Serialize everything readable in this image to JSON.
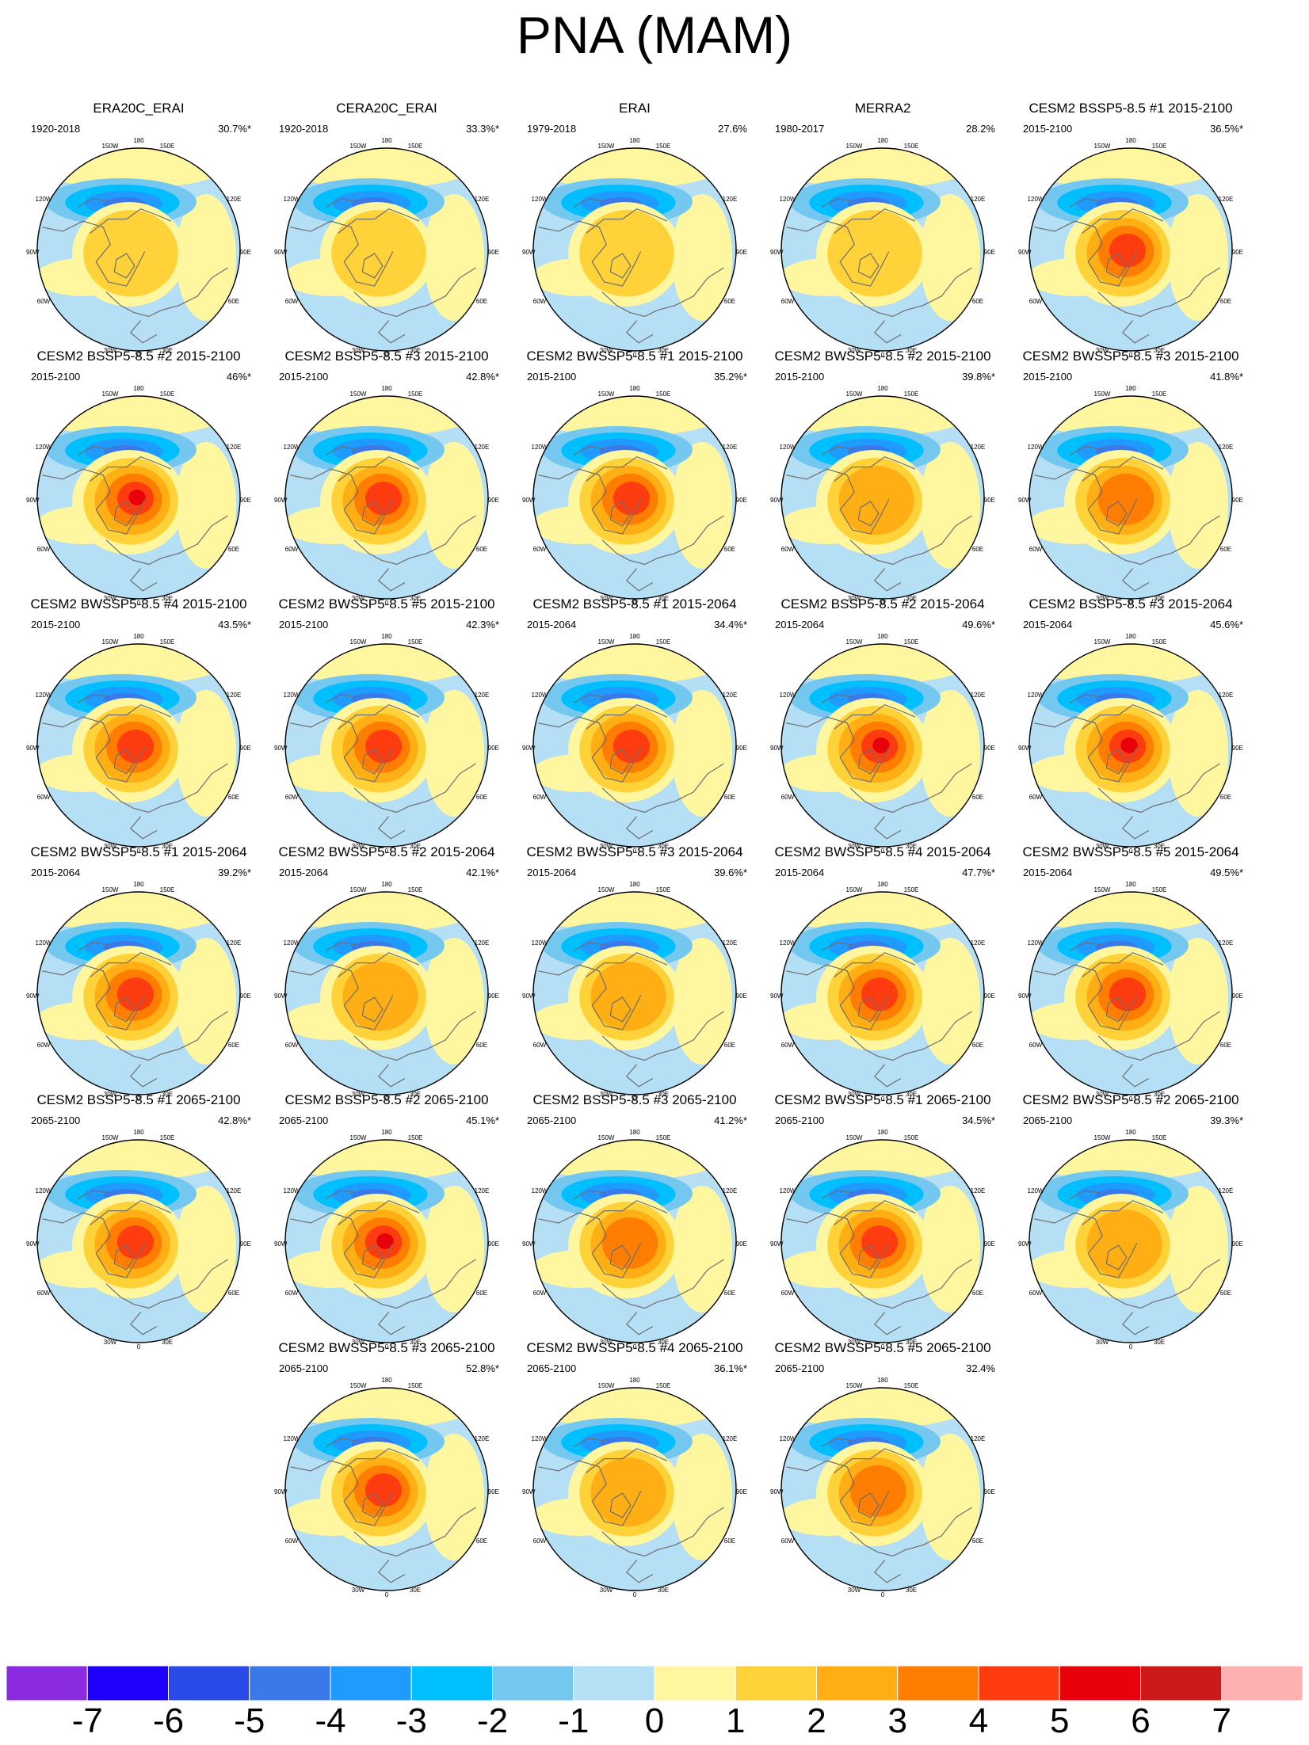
{
  "title": "PNA (MAM)",
  "chart_data": {
    "type": "heatmap",
    "projection": "north-polar-stereographic",
    "title": "PNA (MAM)",
    "longitude_labels": [
      "180",
      "150W",
      "150E",
      "120W",
      "120E",
      "90W",
      "90E",
      "60W",
      "60E",
      "30W",
      "30E",
      "0"
    ],
    "colorbar": {
      "levels": [
        "-7",
        "-6",
        "-5",
        "-4",
        "-3",
        "-2",
        "-1",
        "0",
        "1",
        "2",
        "3",
        "4",
        "5",
        "6",
        "7"
      ],
      "colors": [
        "#8a2be2",
        "#1f00ff",
        "#2a4ae8",
        "#3a7ae8",
        "#1f9bff",
        "#00bfff",
        "#74c8f0",
        "#b5dff4",
        "#fff7a0",
        "#ffd23a",
        "#ffae14",
        "#ff7d00",
        "#ff3c0f",
        "#e8000b",
        "#cc1a1a",
        "#ffb0b0"
      ]
    },
    "panels": [
      {
        "title": "ERA20C_ERAI",
        "period": "1920-2018",
        "explained_variance": "30.7%*",
        "pos_peak": 2.0,
        "neg_peak": -3.1
      },
      {
        "title": "CERA20C_ERAI",
        "period": "1920-2018",
        "explained_variance": "33.3%*",
        "pos_peak": 1.9,
        "neg_peak": -3.2
      },
      {
        "title": "ERAI",
        "period": "1979-2018",
        "explained_variance": "27.6%",
        "pos_peak": 1.9,
        "neg_peak": -3.1
      },
      {
        "title": "MERRA2",
        "period": "1980-2017",
        "explained_variance": "28.2%",
        "pos_peak": 1.9,
        "neg_peak": -3.2
      },
      {
        "title": "CESM2 BSSP5-8.5 #1 2015-2100",
        "period": "2015-2100",
        "explained_variance": "36.5%*",
        "pos_peak": 4.6,
        "neg_peak": -3.4
      },
      {
        "title": "CESM2 BSSP5-8.5 #2 2015-2100",
        "period": "2015-2100",
        "explained_variance": "46%*",
        "pos_peak": 5.8,
        "neg_peak": -4.0
      },
      {
        "title": "CESM2 BSSP5-8.5 #3 2015-2100",
        "period": "2015-2100",
        "explained_variance": "42.8%*",
        "pos_peak": 4.7,
        "neg_peak": -4.1
      },
      {
        "title": "CESM2 BWSSP5-8.5 #1 2015-2100",
        "period": "2015-2100",
        "explained_variance": "35.2%*",
        "pos_peak": 4.4,
        "neg_peak": -3.6
      },
      {
        "title": "CESM2 BWSSP5-8.5 #2 2015-2100",
        "period": "2015-2100",
        "explained_variance": "39.8%*",
        "pos_peak": 2.9,
        "neg_peak": -4.1
      },
      {
        "title": "CESM2 BWSSP5-8.5 #3 2015-2100",
        "period": "2015-2100",
        "explained_variance": "41.8%*",
        "pos_peak": 3.4,
        "neg_peak": -4.1
      },
      {
        "title": "CESM2 BWSSP5-8.5 #4 2015-2100",
        "period": "2015-2100",
        "explained_variance": "43.5%*",
        "pos_peak": 4.2,
        "neg_peak": -4.4
      },
      {
        "title": "CESM2 BWSSP5-8.5 #5 2015-2100",
        "period": "2015-2100",
        "explained_variance": "42.3%*",
        "pos_peak": 4.2,
        "neg_peak": -4.3
      },
      {
        "title": "CESM2 BSSP5-8.5 #1 2015-2064",
        "period": "2015-2064",
        "explained_variance": "34.4%*",
        "pos_peak": 4.7,
        "neg_peak": -3.5
      },
      {
        "title": "CESM2 BSSP5-8.5 #2 2015-2064",
        "period": "2015-2064",
        "explained_variance": "49.6%*",
        "pos_peak": 5.6,
        "neg_peak": -5.6
      },
      {
        "title": "CESM2 BSSP5-8.5 #3 2015-2064",
        "period": "2015-2064",
        "explained_variance": "45.6%*",
        "pos_peak": 5.4,
        "neg_peak": -3.9
      },
      {
        "title": "CESM2 BWSSP5-8.5 #1 2015-2064",
        "period": "2015-2064",
        "explained_variance": "39.2%*",
        "pos_peak": 4.6,
        "neg_peak": -4.1
      },
      {
        "title": "CESM2 BWSSP5-8.5 #2 2015-2064",
        "period": "2015-2064",
        "explained_variance": "42.1%*",
        "pos_peak": 2.9,
        "neg_peak": -4.3
      },
      {
        "title": "CESM2 BWSSP5-8.5 #3 2015-2064",
        "period": "2015-2064",
        "explained_variance": "39.6%*",
        "pos_peak": 2.9,
        "neg_peak": -4.0
      },
      {
        "title": "CESM2 BWSSP5-8.5 #4 2015-2064",
        "period": "2015-2064",
        "explained_variance": "47.7%*",
        "pos_peak": 4.4,
        "neg_peak": -4.6
      },
      {
        "title": "CESM2 BWSSP5-8.5 #5 2015-2064",
        "period": "2015-2064",
        "explained_variance": "49.5%*",
        "pos_peak": 4.4,
        "neg_peak": -4.2
      },
      {
        "title": "CESM2 BSSP5-8.5 #1 2065-2100",
        "period": "2065-2100",
        "explained_variance": "42.8%*",
        "pos_peak": 4.4,
        "neg_peak": -3.9
      },
      {
        "title": "CESM2 BSSP5-8.5 #2 2065-2100",
        "period": "2065-2100",
        "explained_variance": "45.1%*",
        "pos_peak": 6.6,
        "neg_peak": -3.9
      },
      {
        "title": "CESM2 BSSP5-8.5 #3 2065-2100",
        "period": "2065-2100",
        "explained_variance": "41.2%*",
        "pos_peak": 3.4,
        "neg_peak": -4.6
      },
      {
        "title": "CESM2 BWSSP5-8.5 #1 2065-2100",
        "period": "2065-2100",
        "explained_variance": "34.5%*",
        "pos_peak": 4.2,
        "neg_peak": -4.2
      },
      {
        "title": "CESM2 BWSSP5-8.5 #2 2065-2100",
        "period": "2065-2100",
        "explained_variance": "39.3%*",
        "pos_peak": 2.9,
        "neg_peak": -4.1
      },
      {
        "title": "CESM2 BWSSP5-8.5 #3 2065-2100",
        "period": "2065-2100",
        "explained_variance": "52.8%*",
        "pos_peak": 4.6,
        "neg_peak": -4.4
      },
      {
        "title": "CESM2 BWSSP5-8.5 #4 2065-2100",
        "period": "2065-2100",
        "explained_variance": "36.1%*",
        "pos_peak": 2.9,
        "neg_peak": -3.1
      },
      {
        "title": "CESM2 BWSSP5-8.5 #5 2065-2100",
        "period": "2065-2100",
        "explained_variance": "32.4%",
        "pos_peak": 3.4,
        "neg_peak": -3.1
      }
    ]
  }
}
